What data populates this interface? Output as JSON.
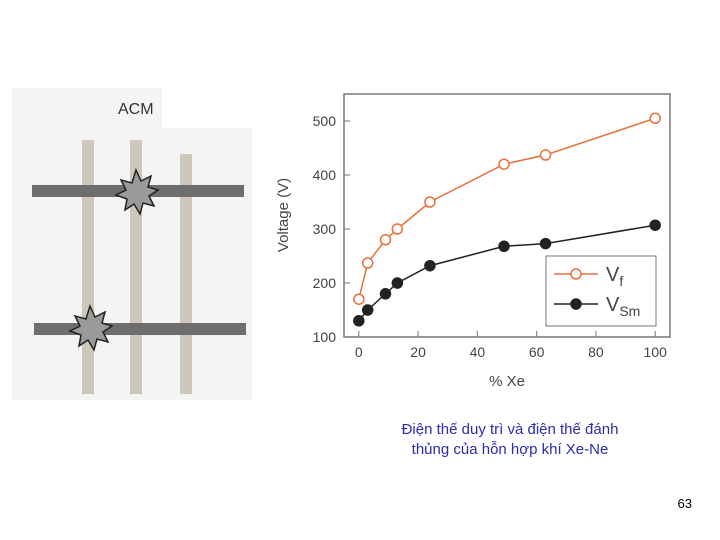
{
  "acm_figure": {
    "label": "ACM"
  },
  "caption": {
    "line1": "Điện thế duy trì và điện thế đánh",
    "line2": "thủng của hỗn hợp khí Xe-Ne"
  },
  "page_number": "63",
  "chart_data": {
    "type": "line",
    "xlabel": "% Xe",
    "ylabel": "Voltage (V)",
    "xlim": [
      -5,
      105
    ],
    "ylim": [
      100,
      550
    ],
    "xticks": [
      0,
      20,
      40,
      60,
      80,
      100
    ],
    "yticks": [
      100,
      200,
      300,
      400,
      500
    ],
    "grid": false,
    "legend_position": "bottom-right",
    "series": [
      {
        "name": "Vf",
        "marker": "open-circle",
        "color": "#e8703a",
        "x": [
          0,
          3,
          9,
          13,
          24,
          49,
          63,
          100
        ],
        "y": [
          170,
          237,
          280,
          300,
          350,
          420,
          437,
          505
        ]
      },
      {
        "name": "VSm",
        "marker": "filled-circle",
        "color": "#222222",
        "x": [
          0,
          3,
          9,
          13,
          24,
          49,
          63,
          100
        ],
        "y": [
          130,
          150,
          180,
          200,
          232,
          268,
          273,
          307
        ]
      }
    ]
  }
}
